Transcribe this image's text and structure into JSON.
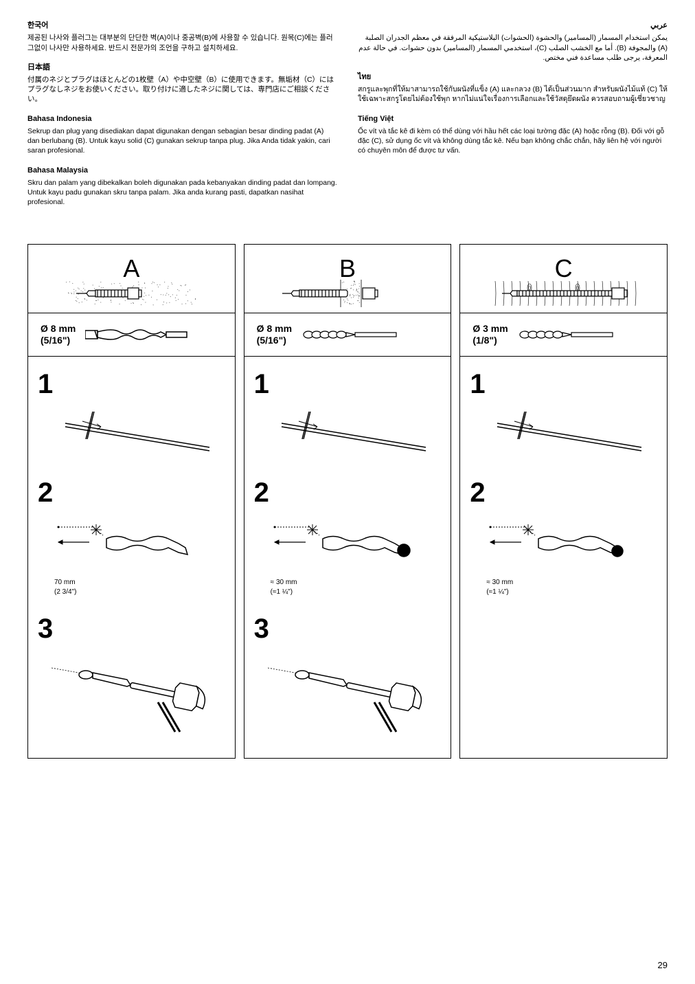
{
  "languages": [
    {
      "col": 1,
      "title": "한국어",
      "text": "제공된 나사와 플러그는 대부분의 단단한 벽(A)이나 중공벽(B)에 사용할 수 있습니다. 원목(C)에는 플러그없이 나사만 사용하세요. 반드시 전문가의 조언을 구하고 설치하세요."
    },
    {
      "col": 1,
      "title": "日本語",
      "text": "付属のネジとプラグはほとんどの1枚壁（A）や中空壁（B）に使用できます。無垢材（C）にはプラグなしネジをお使いください。取り付けに適したネジに関しては、専門店にご相談ください。"
    },
    {
      "col": 1,
      "title": "Bahasa Indonesia",
      "text": "Sekrup dan plug yang disediakan dapat digunakan dengan sebagian besar dinding padat (A) dan berlubang (B). Untuk kayu solid (C) gunakan sekrup tanpa plug. Jika Anda tidak yakin, cari saran profesional."
    },
    {
      "col": 1,
      "title": "Bahasa Malaysia",
      "text": "Skru dan palam yang dibekalkan boleh digunakan pada kebanyakan dinding padat dan lompang. Untuk kayu padu gunakan skru tanpa palam. Jika anda kurang pasti, dapatkan nasihat profesional."
    },
    {
      "col": 2,
      "rtl": true,
      "title": "عربي",
      "text": "يمكن استخدام المسمار (المسامير) والحشوة (الحشوات) البلاستيكية المرفقة في معظم الجدران الصلبة (A) والمجوفة (B). أما مع الخشب الصلب (C)، استخدمي المسمار (المسامير) بدون حشوات. في حالة عدم المعرفة، يرجى طلب مساعدة فني مختص."
    },
    {
      "col": 2,
      "title": "ไทย",
      "text": "สกรูและพุกที่ให้มาสามารถใช้กับผนังที่แข็ง (A) และกลวง (B) ได้เป็นส่วนมาก สำหรับผนังไม้แท้ (C) ให้ใช้เฉพาะสกรูโดยไม่ต้องใช้พุก หากไม่แน่ใจเรื่องการเลือกและใช้วัสดุยึดผนัง ควรสอบถามผู้เชี่ยวชาญ"
    },
    {
      "col": 2,
      "title": "Tiếng Việt",
      "text": "Ốc vít và tắc kê đi kèm có thể dùng với hầu hết các loại tường đặc (A) hoặc rỗng (B). Đối với gỗ đặc (C), sử dụng ốc vít và không dùng tắc kê. Nếu bạn không chắc chắn, hãy liên hệ với người có chuyên môn để được tư vấn."
    }
  ],
  "panels": [
    {
      "letter": "A",
      "drill_size": "Ø 8 mm",
      "drill_imperial": "(5/16\")",
      "step2_label": "70 mm\n(2 3/4\")",
      "steps_count": 3,
      "wall_type": "solid"
    },
    {
      "letter": "B",
      "drill_size": "Ø 8 mm",
      "drill_imperial": "(5/16\")",
      "step2_label": "≈ 30 mm\n(≈1 ¼\")",
      "steps_count": 3,
      "wall_type": "hollow"
    },
    {
      "letter": "C",
      "drill_size": "Ø 3 mm",
      "drill_imperial": "(1/8\")",
      "step2_label": "≈ 30 mm\n(≈1 ¼\")",
      "steps_count": 2,
      "wall_type": "wood"
    }
  ],
  "page_number": "29",
  "colors": {
    "stroke": "#000000",
    "bg": "#ffffff"
  }
}
